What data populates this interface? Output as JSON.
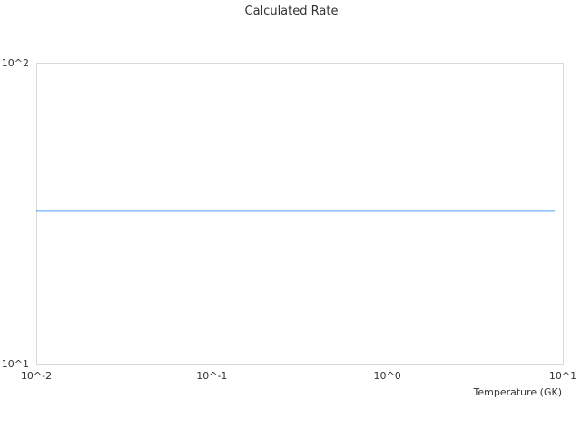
{
  "chart_data": {
    "type": "line",
    "title": "Calculated Rate",
    "xlabel": "Temperature (GK)",
    "ylabel": "",
    "xscale": "log",
    "yscale": "log",
    "xlim": [
      0.01,
      10
    ],
    "ylim": [
      10,
      100
    ],
    "x_ticks": [
      {
        "value": 0.01,
        "label": "10^-2"
      },
      {
        "value": 0.1,
        "label": "10^-1"
      },
      {
        "value": 1,
        "label": "10^0"
      },
      {
        "value": 10,
        "label": "10^1"
      }
    ],
    "y_ticks": [
      {
        "value": 10,
        "label": "10^1"
      },
      {
        "value": 100,
        "label": "10^2"
      }
    ],
    "grid": false,
    "series": [
      {
        "color": "#4da3ff",
        "x": [
          0.01,
          9
        ],
        "y": [
          32.2,
          32.2
        ]
      }
    ]
  }
}
